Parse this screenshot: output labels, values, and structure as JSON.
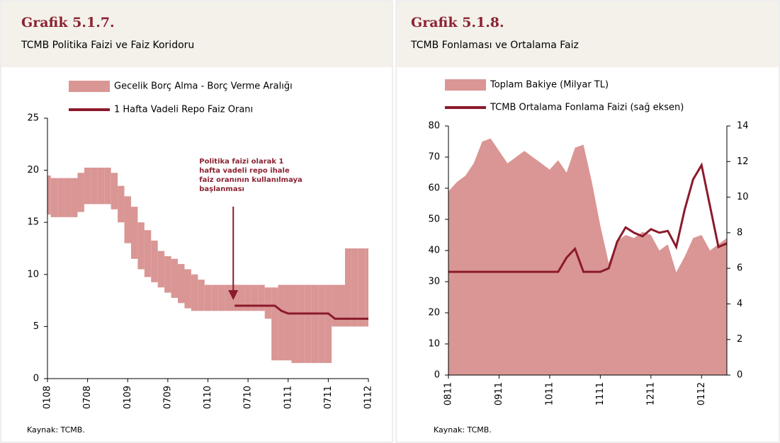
{
  "chart_data": [
    {
      "type": "band",
      "title": "Grafik 5.1.7.",
      "subtitle": "TCMB Politika Faizi ve Faiz Koridoru",
      "source": "Kaynak: TCMB.",
      "categories": [
        "0108",
        null,
        null,
        null,
        null,
        null,
        "0708",
        null,
        null,
        null,
        null,
        null,
        "0109",
        null,
        null,
        null,
        null,
        null,
        "0709",
        null,
        null,
        null,
        null,
        null,
        "0110",
        null,
        null,
        null,
        null,
        null,
        "0710",
        null,
        null,
        null,
        null,
        null,
        "0111",
        null,
        null,
        null,
        null,
        null,
        "0711",
        null,
        null,
        null,
        null,
        null,
        "0112"
      ],
      "series": [
        {
          "name": "Gecelik Borç Alma - Borç Verme Aralığı",
          "color": "#d99694",
          "low": [
            15.75,
            15.5,
            15.5,
            15.5,
            15.5,
            16,
            16.75,
            16.75,
            16.75,
            16.75,
            16.25,
            15,
            13,
            11.5,
            10.5,
            9.75,
            9.25,
            8.75,
            8.25,
            7.75,
            7.25,
            6.75,
            6.5,
            6.5,
            6.5,
            6.5,
            6.5,
            6.5,
            6.5,
            6.5,
            6.5,
            6.5,
            6.5,
            5.75,
            1.75,
            1.75,
            1.75,
            1.5,
            1.5,
            1.5,
            1.5,
            1.5,
            1.5,
            5,
            5,
            5,
            5,
            5,
            5
          ],
          "high": [
            19.5,
            19.25,
            19.25,
            19.25,
            19.25,
            19.75,
            20.25,
            20.25,
            20.25,
            20.25,
            19.75,
            18.5,
            17.5,
            16.5,
            15,
            14.25,
            13.25,
            12.25,
            11.75,
            11.5,
            11,
            10.5,
            10,
            9.5,
            9,
            9,
            9,
            9,
            9,
            9,
            9,
            9,
            9,
            8.75,
            8.75,
            9,
            9,
            9,
            9,
            9,
            9,
            9,
            9,
            9,
            9,
            12.5,
            12.5,
            12.5,
            12.5
          ]
        },
        {
          "name": "1 Hafta Vadeli Repo Faiz Oranı",
          "color": "#8b1a2b",
          "values": [
            null,
            null,
            null,
            null,
            null,
            null,
            null,
            null,
            null,
            null,
            null,
            null,
            null,
            null,
            null,
            null,
            null,
            null,
            null,
            null,
            null,
            null,
            null,
            null,
            null,
            null,
            null,
            null,
            7,
            7,
            7,
            7,
            7,
            7,
            7,
            6.5,
            6.25,
            6.25,
            6.25,
            6.25,
            6.25,
            6.25,
            6.25,
            5.75,
            5.75,
            5.75,
            5.75,
            5.75,
            5.75
          ]
        }
      ],
      "ylim": [
        0,
        25
      ],
      "yticks": [
        0,
        5,
        10,
        15,
        20,
        25
      ],
      "annotation": {
        "lines": [
          "Politika faizi olarak 1",
          "hafta vadeli repo ihale",
          "faiz oranının kullanılmaya",
          "başlanması"
        ],
        "category": 28
      }
    },
    {
      "type": "area",
      "title": "Grafik 5.1.8.",
      "subtitle": "TCMB Fonlaması ve Ortalama Faiz",
      "source": "Kaynak: TCMB.",
      "categories": [
        "0811",
        null,
        null,
        null,
        null,
        null,
        "0911",
        null,
        null,
        null,
        null,
        null,
        "1011",
        null,
        null,
        null,
        null,
        null,
        "1111",
        null,
        null,
        null,
        null,
        null,
        "1211",
        null,
        null,
        null,
        null,
        null,
        "0112",
        null,
        null,
        null
      ],
      "series": [
        {
          "name": "Toplam Bakiye (Milyar TL)",
          "color": "#d99694",
          "values": [
            59,
            62,
            64,
            68,
            75,
            76,
            72,
            68,
            70,
            72,
            70,
            68,
            66,
            69,
            65,
            73,
            74,
            62,
            48,
            36,
            43,
            45,
            44,
            46,
            45,
            40,
            42,
            33,
            38,
            44,
            45,
            40,
            42,
            44
          ]
        },
        {
          "name": "TCMB Ortalama Fonlama Faizi (sağ eksen)",
          "color": "#8b1a2b",
          "axis": "y2",
          "values": [
            5.8,
            5.8,
            5.8,
            5.8,
            5.8,
            5.8,
            5.8,
            5.8,
            5.8,
            5.8,
            5.8,
            5.8,
            5.8,
            5.8,
            6.6,
            7.1,
            5.8,
            5.8,
            5.8,
            6.0,
            7.5,
            8.3,
            8.0,
            7.8,
            8.2,
            8.0,
            8.1,
            7.2,
            9.3,
            11.0,
            11.8,
            9.5,
            7.2,
            7.4
          ]
        }
      ],
      "ylim": [
        0,
        80
      ],
      "yticks": [
        0,
        10,
        20,
        30,
        40,
        50,
        60,
        70,
        80
      ],
      "y2lim": [
        0,
        14
      ],
      "y2ticks": [
        0,
        2,
        4,
        6,
        8,
        10,
        12,
        14
      ]
    }
  ]
}
